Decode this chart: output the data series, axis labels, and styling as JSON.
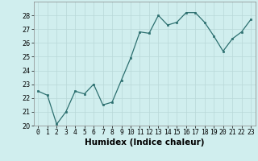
{
  "x": [
    0,
    1,
    2,
    3,
    4,
    5,
    6,
    7,
    8,
    9,
    10,
    11,
    12,
    13,
    14,
    15,
    16,
    17,
    18,
    19,
    20,
    21,
    22,
    23
  ],
  "y": [
    22.5,
    22.2,
    20.1,
    21.0,
    22.5,
    22.3,
    23.0,
    21.5,
    21.7,
    23.3,
    24.9,
    26.8,
    26.7,
    28.0,
    27.3,
    27.5,
    28.2,
    28.2,
    27.5,
    26.5,
    25.4,
    26.3,
    26.8,
    27.7
  ],
  "xlabel": "Humidex (Indice chaleur)",
  "ylim": [
    20,
    29
  ],
  "xlim": [
    -0.5,
    23.5
  ],
  "yticks": [
    20,
    21,
    22,
    23,
    24,
    25,
    26,
    27,
    28
  ],
  "xticks": [
    0,
    1,
    2,
    3,
    4,
    5,
    6,
    7,
    8,
    9,
    10,
    11,
    12,
    13,
    14,
    15,
    16,
    17,
    18,
    19,
    20,
    21,
    22,
    23
  ],
  "line_color": "#2d7070",
  "marker_color": "#2d7070",
  "bg_color": "#d0eeee",
  "grid_color": "#b8d8d8",
  "xlabel_fontsize": 7.5,
  "tick_fontsize": 5.8
}
